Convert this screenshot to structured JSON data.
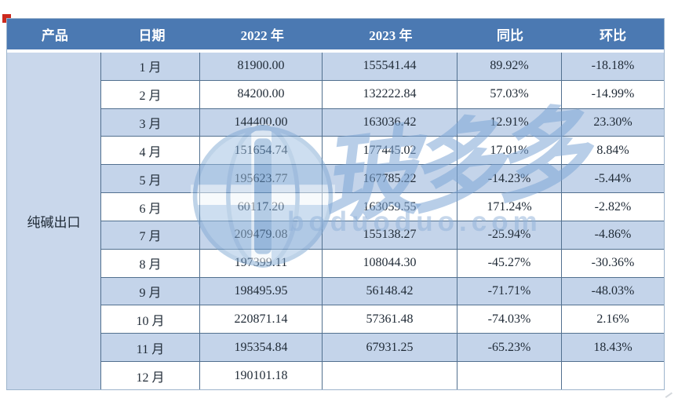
{
  "table": {
    "headers": {
      "product": "产品",
      "date": "日期",
      "y2022": "2022 年",
      "y2023": "2023 年",
      "yoy": "同比",
      "mom": "环比"
    },
    "product_name": "纯碱出口",
    "rows": [
      {
        "month": "1 月",
        "y2022": "81900.00",
        "y2023": "155541.44",
        "yoy": "89.92%",
        "mom": "-18.18%"
      },
      {
        "month": "2 月",
        "y2022": "84200.00",
        "y2023": "132222.84",
        "yoy": "57.03%",
        "mom": "-14.99%"
      },
      {
        "month": "3 月",
        "y2022": "144400.00",
        "y2023": "163036.42",
        "yoy": "12.91%",
        "mom": "23.30%"
      },
      {
        "month": "4 月",
        "y2022": "151654.74",
        "y2023": "177445.02",
        "yoy": "17.01%",
        "mom": "8.84%"
      },
      {
        "month": "5 月",
        "y2022": "195623.77",
        "y2023": "167785.22",
        "yoy": "-14.23%",
        "mom": "-5.44%"
      },
      {
        "month": "6 月",
        "y2022": "60117.20",
        "y2023": "163059.55",
        "yoy": "171.24%",
        "mom": "-2.82%"
      },
      {
        "month": "7 月",
        "y2022": "209479.08",
        "y2023": "155138.27",
        "yoy": "-25.94%",
        "mom": "-4.86%"
      },
      {
        "month": "8 月",
        "y2022": "197399.11",
        "y2023": "108044.30",
        "yoy": "-45.27%",
        "mom": "-30.36%"
      },
      {
        "month": "9 月",
        "y2022": "198495.95",
        "y2023": "56148.42",
        "yoy": "-71.71%",
        "mom": "-48.03%"
      },
      {
        "month": "10 月",
        "y2022": "220871.14",
        "y2023": "57361.48",
        "yoy": "-74.03%",
        "mom": "2.16%"
      },
      {
        "month": "11 月",
        "y2022": "195354.84",
        "y2023": "67931.25",
        "yoy": "-65.23%",
        "mom": "18.43%"
      },
      {
        "month": "12 月",
        "y2022": "190101.18",
        "y2023": "",
        "yoy": "",
        "mom": ""
      }
    ]
  },
  "watermark": {
    "brand": "玻多多",
    "url": "boduoduo.com"
  },
  "colors": {
    "header_bg": "#4b79b2",
    "header_text": "#ffffff",
    "band_bg": "#c4d4ea",
    "product_col_bg": "#c9d7eb",
    "grid_border": "#52708f",
    "outer_border": "#9db4cc",
    "body_text": "#1f2a36",
    "corner_mark": "#cc2a1e",
    "watermark_blue": "#8eb0d8"
  },
  "chart_data": {
    "type": "table",
    "title": "纯碱出口",
    "columns": [
      "产品",
      "日期",
      "2022 年",
      "2023 年",
      "同比",
      "环比"
    ],
    "categories": [
      "1月",
      "2月",
      "3月",
      "4月",
      "5月",
      "6月",
      "7月",
      "8月",
      "9月",
      "10月",
      "11月",
      "12月"
    ],
    "series": [
      {
        "name": "2022 年",
        "values": [
          81900.0,
          84200.0,
          144400.0,
          151654.74,
          195623.77,
          60117.2,
          209479.08,
          197399.11,
          198495.95,
          220871.14,
          195354.84,
          190101.18
        ]
      },
      {
        "name": "2023 年",
        "values": [
          155541.44,
          132222.84,
          163036.42,
          177445.02,
          167785.22,
          163059.55,
          155138.27,
          108044.3,
          56148.42,
          57361.48,
          67931.25,
          null
        ]
      },
      {
        "name": "同比(%)",
        "values": [
          89.92,
          57.03,
          12.91,
          17.01,
          -14.23,
          171.24,
          -25.94,
          -45.27,
          -71.71,
          -74.03,
          -65.23,
          null
        ]
      },
      {
        "name": "环比(%)",
        "values": [
          -18.18,
          -14.99,
          23.3,
          8.84,
          -5.44,
          -2.82,
          -4.86,
          -30.36,
          -48.03,
          2.16,
          18.43,
          null
        ]
      }
    ]
  }
}
